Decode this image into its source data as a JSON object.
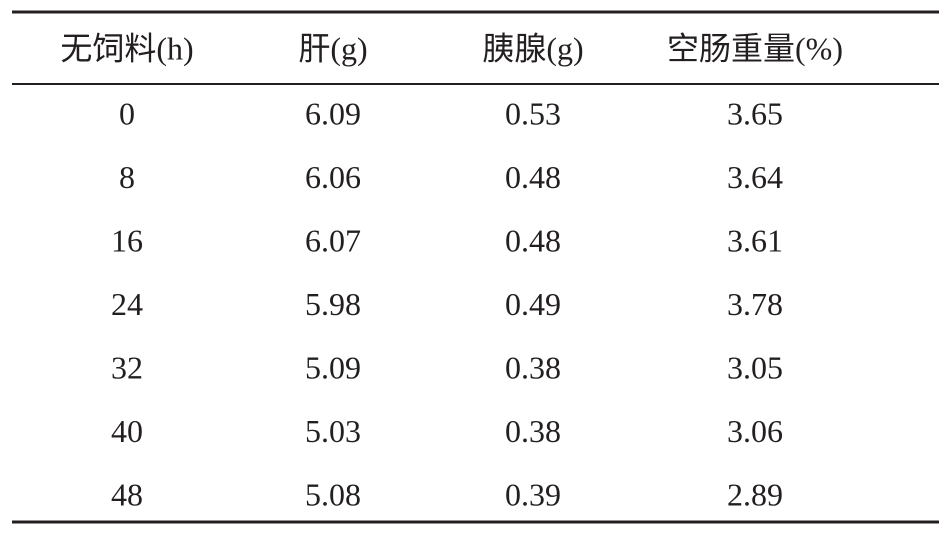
{
  "table": {
    "header": [
      "无饲料(h)",
      "肝(g)",
      "胰腺(g)",
      "空肠重量(%)"
    ],
    "rows": [
      [
        "0",
        "6.09",
        "0.53",
        "3.65"
      ],
      [
        "8",
        "6.06",
        "0.48",
        "3.64"
      ],
      [
        "16",
        "6.07",
        "0.48",
        "3.61"
      ],
      [
        "24",
        "5.98",
        "0.49",
        "3.78"
      ],
      [
        "32",
        "5.09",
        "0.38",
        "3.05"
      ],
      [
        "40",
        "5.03",
        "0.38",
        "3.06"
      ],
      [
        "48",
        "5.08",
        "0.39",
        "2.89"
      ]
    ]
  }
}
